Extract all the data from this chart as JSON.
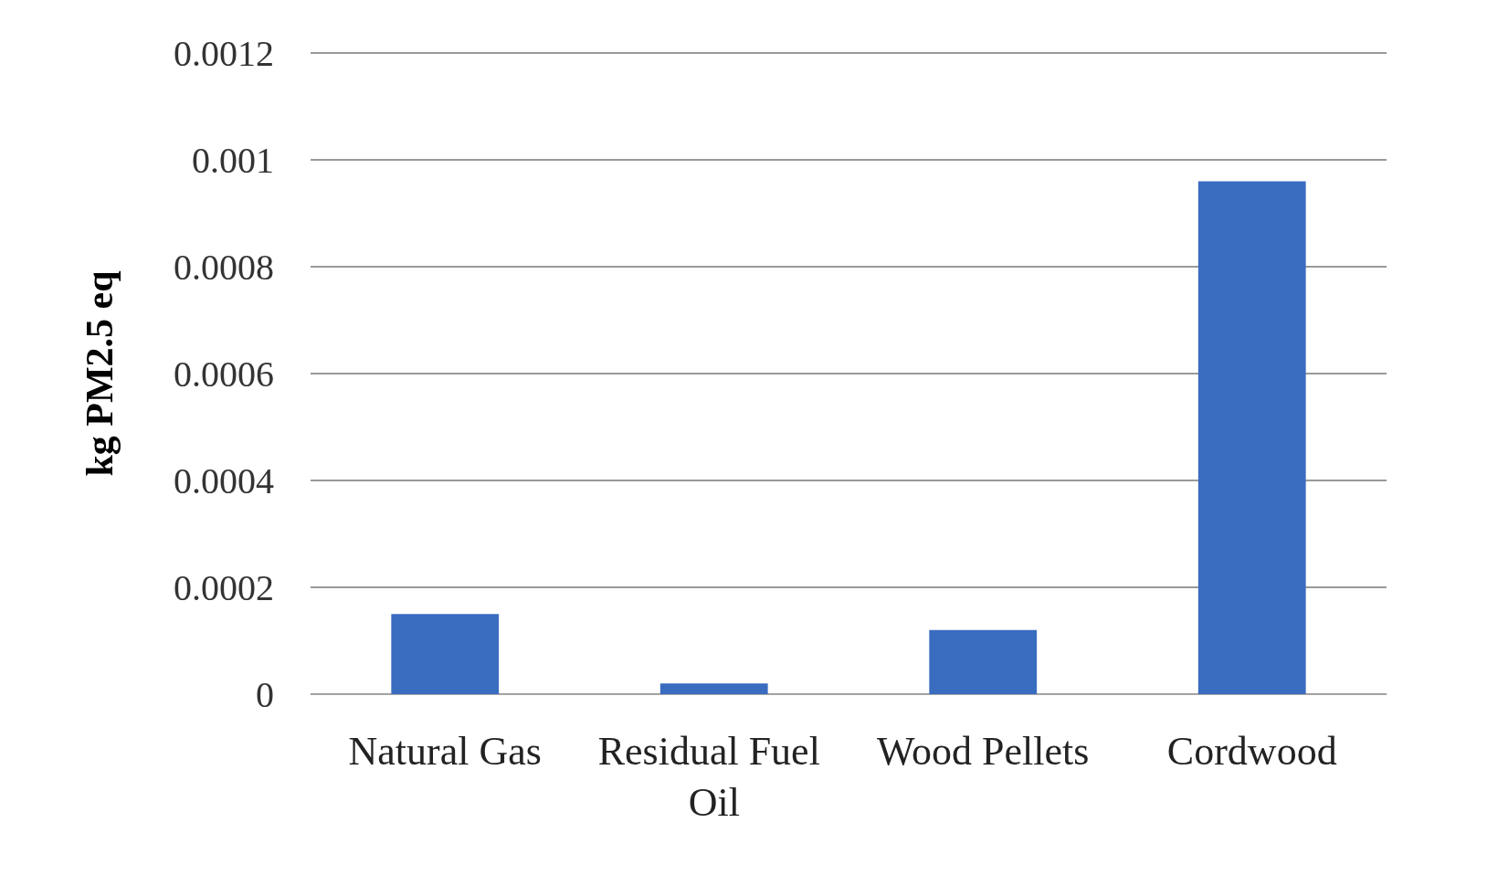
{
  "chart_data": {
    "type": "bar",
    "ylabel": "kg PM2.5 eq",
    "categories": [
      "Natural Gas",
      "Residual Fuel Oil",
      "Wood Pellets",
      "Cordwood"
    ],
    "values": [
      0.00015,
      2e-05,
      0.00012,
      0.00096
    ],
    "color": "#3a6cc0",
    "ylim": [
      0,
      0.0012
    ],
    "yticks": [
      0,
      0.0002,
      0.0004,
      0.0006,
      0.0008,
      0.001,
      0.0012
    ],
    "grid": "y"
  }
}
